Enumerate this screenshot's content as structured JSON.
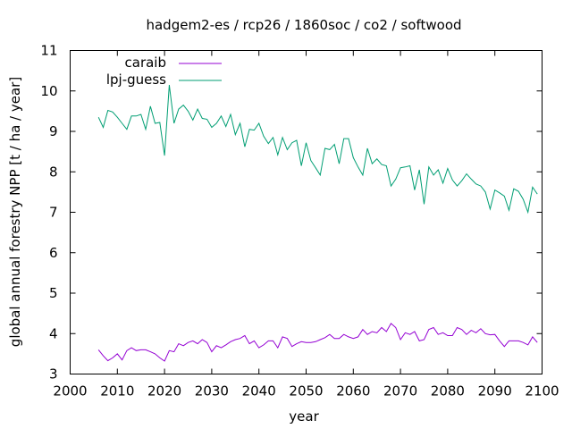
{
  "chart_data": {
    "type": "line",
    "title": "hadgem2-es / rcp26 / 1860soc / co2 / softwood",
    "xlabel": "year",
    "ylabel": "global annual forestry NPP [t / ha / year]",
    "xlim": [
      2000,
      2100
    ],
    "ylim": [
      3,
      11
    ],
    "xticks": [
      2000,
      2010,
      2020,
      2030,
      2040,
      2050,
      2060,
      2070,
      2080,
      2090,
      2100
    ],
    "yticks": [
      3,
      4,
      5,
      6,
      7,
      8,
      9,
      10,
      11
    ],
    "grid": false,
    "legend_position": "top-left",
    "x_start": 2006,
    "series": [
      {
        "name": "caraib",
        "color": "#9400d3",
        "values": [
          3.6,
          3.45,
          3.33,
          3.4,
          3.5,
          3.35,
          3.58,
          3.65,
          3.58,
          3.6,
          3.6,
          3.55,
          3.5,
          3.4,
          3.32,
          3.58,
          3.55,
          3.75,
          3.7,
          3.78,
          3.82,
          3.75,
          3.85,
          3.78,
          3.55,
          3.7,
          3.65,
          3.72,
          3.8,
          3.85,
          3.88,
          3.95,
          3.75,
          3.82,
          3.65,
          3.72,
          3.82,
          3.82,
          3.65,
          3.92,
          3.88,
          3.68,
          3.75,
          3.8,
          3.78,
          3.78,
          3.8,
          3.85,
          3.9,
          3.98,
          3.88,
          3.88,
          3.98,
          3.92,
          3.88,
          3.92,
          4.1,
          3.98,
          4.05,
          4.02,
          4.15,
          4.05,
          4.25,
          4.15,
          3.85,
          4.02,
          3.98,
          4.05,
          3.82,
          3.85,
          4.1,
          4.15,
          3.98,
          4.02,
          3.95,
          3.95,
          4.15,
          4.1,
          3.98,
          4.08,
          4.02,
          4.12,
          4.0,
          3.97,
          3.98,
          3.82,
          3.68,
          3.82,
          3.82,
          3.82,
          3.78,
          3.72,
          3.92,
          3.78
        ]
      },
      {
        "name": "lpj-guess",
        "color": "#009e73",
        "values": [
          9.35,
          9.1,
          9.52,
          9.48,
          9.35,
          9.2,
          9.05,
          9.38,
          9.38,
          9.42,
          9.05,
          9.62,
          9.2,
          9.22,
          8.4,
          10.15,
          9.2,
          9.55,
          9.65,
          9.5,
          9.28,
          9.55,
          9.32,
          9.3,
          9.1,
          9.2,
          9.38,
          9.12,
          9.42,
          8.92,
          9.2,
          8.62,
          9.05,
          9.03,
          9.2,
          8.88,
          8.7,
          8.85,
          8.42,
          8.85,
          8.55,
          8.72,
          8.78,
          8.15,
          8.72,
          8.28,
          8.1,
          7.92,
          8.58,
          8.55,
          8.68,
          8.2,
          8.82,
          8.82,
          8.35,
          8.12,
          7.92,
          8.58,
          8.2,
          8.32,
          8.18,
          8.15,
          7.65,
          7.82,
          8.1,
          8.12,
          8.15,
          7.55,
          8.05,
          7.2,
          8.12,
          7.92,
          8.05,
          7.72,
          8.08,
          7.8,
          7.65,
          7.78,
          7.95,
          7.82,
          7.7,
          7.65,
          7.5,
          7.08,
          7.55,
          7.48,
          7.4,
          7.05,
          7.58,
          7.52,
          7.32,
          7.0,
          7.62,
          7.45
        ]
      }
    ]
  }
}
